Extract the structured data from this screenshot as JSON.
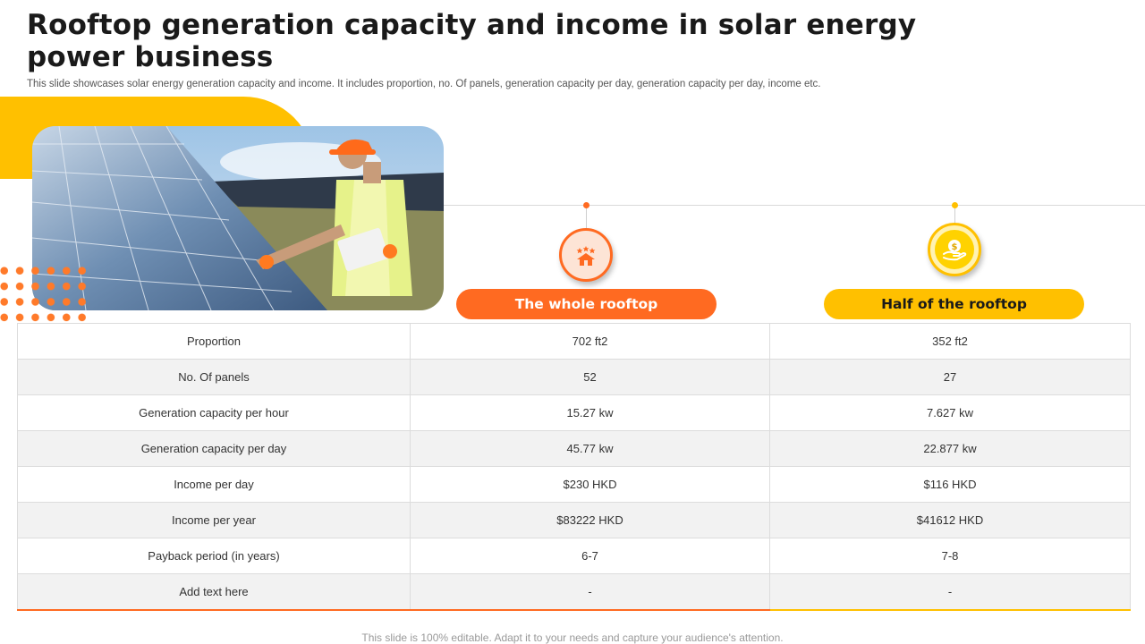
{
  "slide": {
    "title": "Rooftop generation capacity and income in solar energy power business",
    "subtitle": "This slide showcases solar energy generation capacity and income. It includes proportion, no. Of panels, generation capacity per day,  generation capacity per day, income etc.",
    "footer": "This slide is 100% editable. Adapt it to your needs and capture your audience's attention."
  },
  "colors": {
    "orange": "#ff6a21",
    "yellow": "#ffc000"
  },
  "icons": {
    "option1": "house-stars-icon",
    "option2": "money-hand-icon"
  },
  "columns": [
    {
      "label": "The whole rooftop"
    },
    {
      "label": "Half of the rooftop"
    }
  ],
  "rows": [
    {
      "label": "Proportion",
      "v1": "702 ft2",
      "v2": "352 ft2"
    },
    {
      "label": "No. Of panels",
      "v1": "52",
      "v2": "27"
    },
    {
      "label": "Generation  capacity per hour",
      "v1": "15.27  kw",
      "v2": "7.627  kw"
    },
    {
      "label": "Generation  capacity per day",
      "v1": "45.77  kw",
      "v2": "22.877  kw"
    },
    {
      "label": "Income  per day",
      "v1": "$230  HKD",
      "v2": "$116  HKD"
    },
    {
      "label": "Income  per year",
      "v1": "$83222  HKD",
      "v2": "$41612  HKD"
    },
    {
      "label": "Payback period  (in years)",
      "v1": "6-7",
      "v2": "7-8"
    },
    {
      "label": "Add text here",
      "v1": "-",
      "v2": "-"
    }
  ]
}
